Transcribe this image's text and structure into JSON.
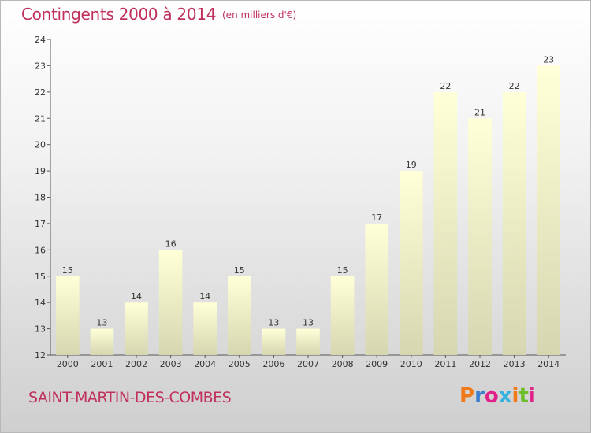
{
  "header": {
    "title": "Contingents 2000 à 2014",
    "subtitle": "(en milliers d'€)"
  },
  "footer": {
    "place_name": "SAINT-MARTIN-DES-COMBES",
    "logo_text": "Proxiti",
    "logo_colors": [
      "#f07a1a",
      "#3a7fd0",
      "#e0218a",
      "#35b2e0",
      "#f07a1a",
      "#6cbf2a",
      "#e0218a"
    ]
  },
  "colors": {
    "title": "#c0305a",
    "bar_top": "#ffffd8",
    "bar_bottom": "#d6d6b0",
    "axis": "#555555",
    "label": "#333333"
  },
  "chart_data": {
    "type": "bar",
    "categories": [
      "2000",
      "2001",
      "2002",
      "2003",
      "2004",
      "2005",
      "2006",
      "2007",
      "2008",
      "2009",
      "2010",
      "2011",
      "2012",
      "2013",
      "2014"
    ],
    "values": [
      15,
      13,
      14,
      16,
      14,
      15,
      13,
      13,
      15,
      17,
      19,
      22,
      21,
      22,
      23
    ],
    "ylim": [
      12,
      24
    ],
    "yticks": [
      12,
      13,
      14,
      15,
      16,
      17,
      18,
      19,
      20,
      21,
      22,
      23,
      24
    ],
    "grid": false,
    "legend": "none",
    "data_labels": true
  }
}
